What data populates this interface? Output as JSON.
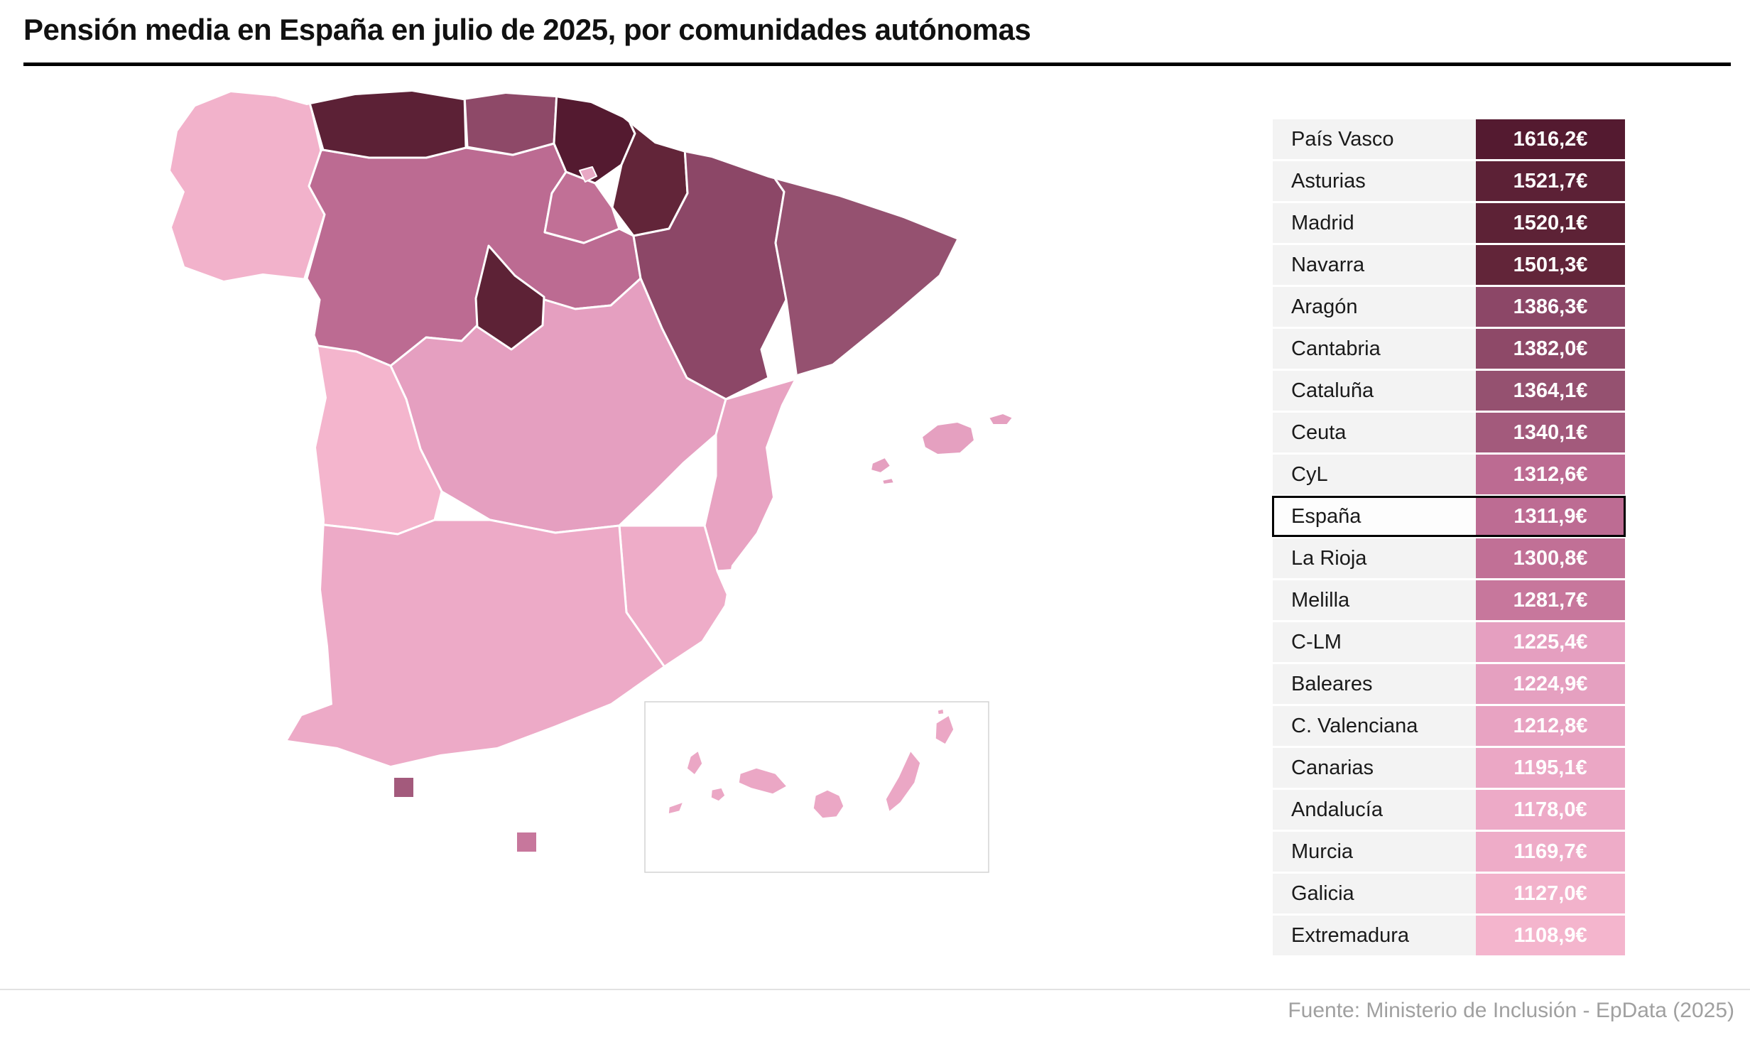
{
  "header": {
    "title": "Pensión media en España en julio de 2025, por comunidades autónomas"
  },
  "footer": {
    "source": "Fuente: Ministerio de Inclusión - EpData (2025)"
  },
  "chart_data": {
    "type": "heatmap",
    "subtype": "choropleth-map-of-spain-with-value-table",
    "title": "Pensión media en España en julio de 2025, por comunidades autónomas",
    "value_unit": "€",
    "legend_position": "right-table",
    "rows": [
      {
        "label": "País Vasco",
        "value": "1616,2€",
        "value_num": 1616.2,
        "color": "#541a30",
        "highlight": false
      },
      {
        "label": "Asturias",
        "value": "1521,7€",
        "value_num": 1521.7,
        "color": "#5c2136",
        "highlight": false
      },
      {
        "label": "Madrid",
        "value": "1520,1€",
        "value_num": 1520.1,
        "color": "#5d2236",
        "highlight": false
      },
      {
        "label": "Navarra",
        "value": "1501,3€",
        "value_num": 1501.3,
        "color": "#622539",
        "highlight": false
      },
      {
        "label": "Aragón",
        "value": "1386,3€",
        "value_num": 1386.3,
        "color": "#8c4767",
        "highlight": false
      },
      {
        "label": "Cantabria",
        "value": "1382,0€",
        "value_num": 1382.0,
        "color": "#8e4968",
        "highlight": false
      },
      {
        "label": "Cataluña",
        "value": "1364,1€",
        "value_num": 1364.1,
        "color": "#955170",
        "highlight": false
      },
      {
        "label": "Ceuta",
        "value": "1340,1€",
        "value_num": 1340.1,
        "color": "#a35a7c",
        "highlight": false
      },
      {
        "label": "CyL",
        "value": "1312,6€",
        "value_num": 1312.6,
        "color": "#bc6b92",
        "highlight": false
      },
      {
        "label": "España",
        "value": "1311,9€",
        "value_num": 1311.9,
        "color": "#bd6c93",
        "highlight": true
      },
      {
        "label": "La Rioja",
        "value": "1300,8€",
        "value_num": 1300.8,
        "color": "#c17096",
        "highlight": false
      },
      {
        "label": "Melilla",
        "value": "1281,7€",
        "value_num": 1281.7,
        "color": "#c7779c",
        "highlight": false
      },
      {
        "label": "C-LM",
        "value": "1225,4€",
        "value_num": 1225.4,
        "color": "#e59fc0",
        "highlight": false
      },
      {
        "label": "Baleares",
        "value": "1224,9€",
        "value_num": 1224.9,
        "color": "#e5a0c0",
        "highlight": false
      },
      {
        "label": "C. Valenciana",
        "value": "1212,8€",
        "value_num": 1212.8,
        "color": "#e8a3c2",
        "highlight": false
      },
      {
        "label": "Canarias",
        "value": "1195,1€",
        "value_num": 1195.1,
        "color": "#eba7c5",
        "highlight": false
      },
      {
        "label": "Andalucía",
        "value": "1178,0€",
        "value_num": 1178.0,
        "color": "#edaac7",
        "highlight": false
      },
      {
        "label": "Murcia",
        "value": "1169,7€",
        "value_num": 1169.7,
        "color": "#eeacc8",
        "highlight": false
      },
      {
        "label": "Galicia",
        "value": "1127,0€",
        "value_num": 1127.0,
        "color": "#f2b2cb",
        "highlight": false
      },
      {
        "label": "Extremadura",
        "value": "1108,9€",
        "value_num": 1108.9,
        "color": "#f4b5cd",
        "highlight": false
      }
    ]
  },
  "map": {
    "regions": {
      "pais_vasco": "#541a30",
      "asturias": "#5c2136",
      "madrid": "#5d2236",
      "navarra": "#622539",
      "aragon": "#8c4767",
      "cantabria": "#8e4968",
      "cataluna": "#955170",
      "ceuta": "#a35a7c",
      "cyl": "#bc6b92",
      "la_rioja": "#c17096",
      "melilla": "#c7779c",
      "clm": "#e59fc0",
      "baleares": "#e5a0c0",
      "valencia": "#e8a3c2",
      "canarias": "#eba7c5",
      "andalucia": "#edaac7",
      "murcia": "#eeacc8",
      "galicia": "#f2b2cb",
      "extremadura": "#f4b5cd",
      "trevino_enclave": "#e8a8c4"
    }
  }
}
